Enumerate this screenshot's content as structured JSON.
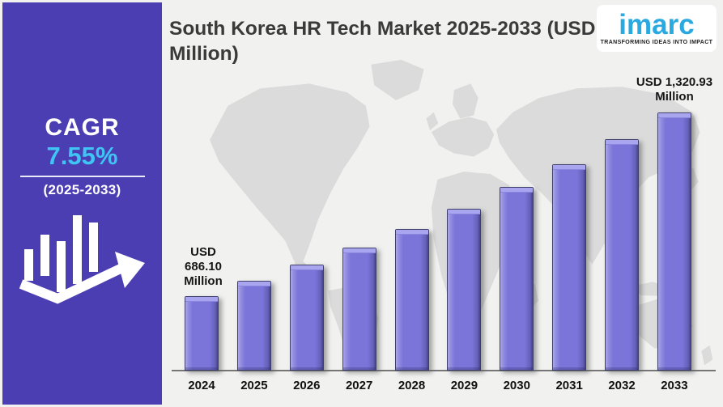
{
  "header": {
    "title": "South Korea HR Tech Market 2025-2033 (USD Million)"
  },
  "logo": {
    "brand": "imarc",
    "tagline": "TRANSFORMING IDEAS INTO IMPACT",
    "brand_color": "#2AA9E1"
  },
  "sidebar": {
    "cagr_label": "CAGR",
    "cagr_value": "7.55%",
    "period": "(2025-2033)",
    "background": "#4B3DB2",
    "value_color": "#3FC4F3",
    "icon": "growth-bars-arrow-icon"
  },
  "chart_data": {
    "type": "bar",
    "title": "South Korea HR Tech Market 2025-2033 (USD Million)",
    "unit": "USD Million",
    "categories": [
      "2024",
      "2025",
      "2026",
      "2027",
      "2028",
      "2029",
      "2030",
      "2031",
      "2032",
      "2033"
    ],
    "values": [
      686.1,
      737.9,
      793.61,
      853.53,
      917.97,
      987.28,
      1061.82,
      1141.99,
      1228.21,
      1320.93
    ],
    "xlabel": "",
    "ylabel": "",
    "ylim": [
      427.5,
      1435
    ],
    "grid": false,
    "legend": false,
    "bar_color": "#7B75DA",
    "bar_color_light": "#A9A5EE",
    "bar_color_dark": "#3F3F6B",
    "annotations": [
      {
        "target_year": "2024",
        "lines": [
          "USD",
          "686.10",
          "Million"
        ]
      },
      {
        "target_year": "2033",
        "lines": [
          "USD 1,320.93",
          "Million"
        ]
      }
    ]
  },
  "background": {
    "canvas": "#F1F1F0",
    "map": "#DBDBDB",
    "map_name": "world-map-silhouette"
  }
}
